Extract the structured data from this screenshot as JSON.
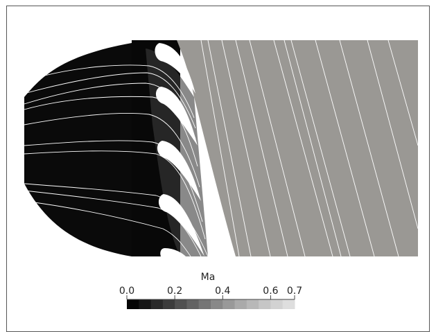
{
  "colorbar": {
    "title": "Ma",
    "lim": [
      0,
      0.7
    ],
    "ticks": [
      {
        "value": 0,
        "label": "0.0"
      },
      0.2,
      0.4,
      0.6,
      0.7
    ],
    "colors": [
      "#050505",
      "#151515",
      "#2a2a2a",
      "#3c3c3c",
      "#505050",
      "#626262",
      "#757575",
      "#888888",
      "#999999",
      "#aaaaaa",
      "#b8b8b8",
      "#c6c6c6",
      "#d2d2d2",
      "#dedede"
    ]
  }
}
